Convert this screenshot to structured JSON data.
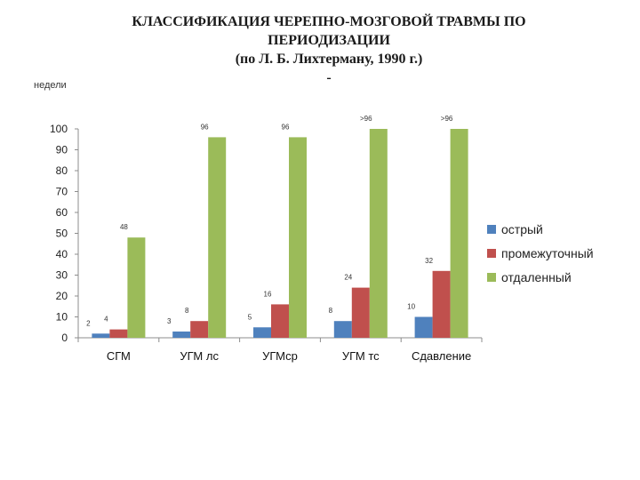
{
  "title_lines": [
    "КЛАССИФИКАЦИЯ ЧЕРЕПНО-МОЗГОВОЙ ТРАВМЫ ПО",
    "ПЕРИОДИЗАЦИИ",
    "(по Л. Б. Лихтерману, 1990 г.)",
    "-"
  ],
  "chart_data": {
    "type": "bar",
    "ylabel": "недели",
    "ylim": [
      0,
      100
    ],
    "yticks": [
      0,
      10,
      20,
      30,
      40,
      50,
      60,
      70,
      80,
      90,
      100
    ],
    "categories": [
      "СГМ",
      "УГМ лс",
      "УГМср",
      "УГМ тс",
      "Сдавление"
    ],
    "series": [
      {
        "name": "острый",
        "color": "#4f81bd",
        "values": [
          2,
          3,
          5,
          8,
          10
        ],
        "labels": [
          "2",
          "3",
          "5",
          "8",
          "10"
        ]
      },
      {
        "name": "промежуточный",
        "color": "#c0504d",
        "values": [
          4,
          8,
          16,
          24,
          32
        ],
        "labels": [
          "4",
          "8",
          "16",
          "24",
          "32"
        ]
      },
      {
        "name": "отдаленный",
        "color": "#9bbb59",
        "values": [
          48,
          96,
          96,
          100,
          100
        ],
        "labels": [
          "48",
          "96",
          "96",
          ">96",
          ">96"
        ]
      }
    ],
    "legend_position": "right",
    "grid": false
  }
}
